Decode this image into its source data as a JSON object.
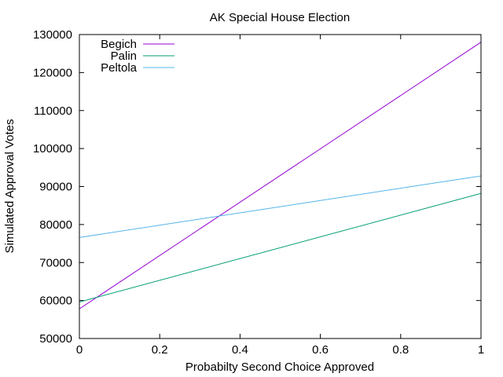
{
  "chart_data": {
    "type": "line",
    "title": "AK Special House Election",
    "xlabel": "Probabilty Second Choice Approved",
    "ylabel": "Simulated Approval Votes",
    "xlim": [
      0,
      1
    ],
    "ylim": [
      50000,
      130000
    ],
    "xticks": [
      0,
      0.2,
      0.4,
      0.6,
      0.8,
      1
    ],
    "xtick_labels": [
      "0",
      "0.2",
      "0.4",
      "0.6",
      "0.8",
      "1"
    ],
    "yticks": [
      50000,
      60000,
      70000,
      80000,
      90000,
      100000,
      110000,
      120000,
      130000
    ],
    "ytick_labels": [
      "50000",
      "60000",
      "70000",
      "80000",
      "90000",
      "100000",
      "110000",
      "120000",
      "130000"
    ],
    "grid": false,
    "legend_position": "top-left",
    "x": [
      0,
      1
    ],
    "series": [
      {
        "name": "Begich",
        "color": "#9400d3",
        "values": [
          57800,
          128000
        ]
      },
      {
        "name": "Palin",
        "color": "#009e73",
        "values": [
          59600,
          88200
        ]
      },
      {
        "name": "Peltola",
        "color": "#56b4e9",
        "values": [
          76600,
          92800
        ]
      }
    ]
  }
}
